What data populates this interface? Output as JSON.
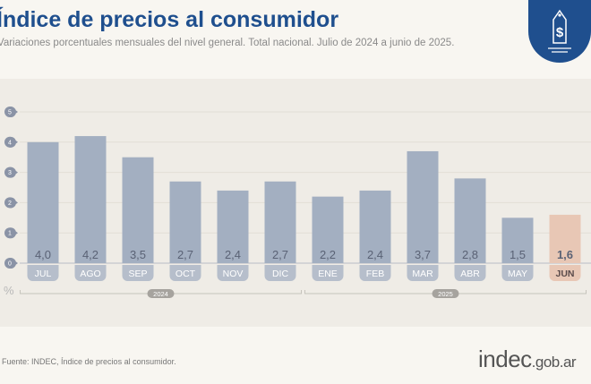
{
  "header": {
    "title": "Índice de precios al consumidor",
    "subtitle": "Variaciones porcentuales mensuales del nivel general. Total nacional. Julio de 2024 a junio de 2025."
  },
  "footer": {
    "source": "Fuente: INDEC, Índice de precios al consumidor.",
    "brand_main": "indec",
    "brand_suffix": ".gob.ar"
  },
  "logo": {
    "icon": "price-tag-dollar-icon",
    "color": "#1f4f8e"
  },
  "chart_data": {
    "type": "bar",
    "title": "Índice de precios al consumidor",
    "ylabel": "%",
    "ylim": [
      0,
      5
    ],
    "yticks": [
      "0",
      "1",
      "2",
      "3",
      "4",
      "5"
    ],
    "categories": [
      "JUL",
      "AGO",
      "SEP",
      "OCT",
      "NOV",
      "DIC",
      "ENE",
      "FEB",
      "MAR",
      "ABR",
      "MAY",
      "JUN"
    ],
    "values": [
      4.0,
      4.2,
      3.5,
      2.7,
      2.4,
      2.7,
      2.2,
      2.4,
      3.7,
      2.8,
      1.5,
      1.6
    ],
    "labels": [
      "4,0",
      "4,2",
      "3,5",
      "2,7",
      "2,4",
      "2,7",
      "2,2",
      "2,4",
      "3,7",
      "2,8",
      "1,5",
      "1,6"
    ],
    "groups": [
      {
        "label": "2024",
        "from": 0,
        "to": 5
      },
      {
        "label": "2025",
        "from": 6,
        "to": 11
      }
    ],
    "highlight_index": 11,
    "colors": {
      "bar": "#a3afc1",
      "highlight": "#e8c7b5",
      "tick_badge": "#8a93a6",
      "text": "#5a6275"
    },
    "grid": true
  }
}
